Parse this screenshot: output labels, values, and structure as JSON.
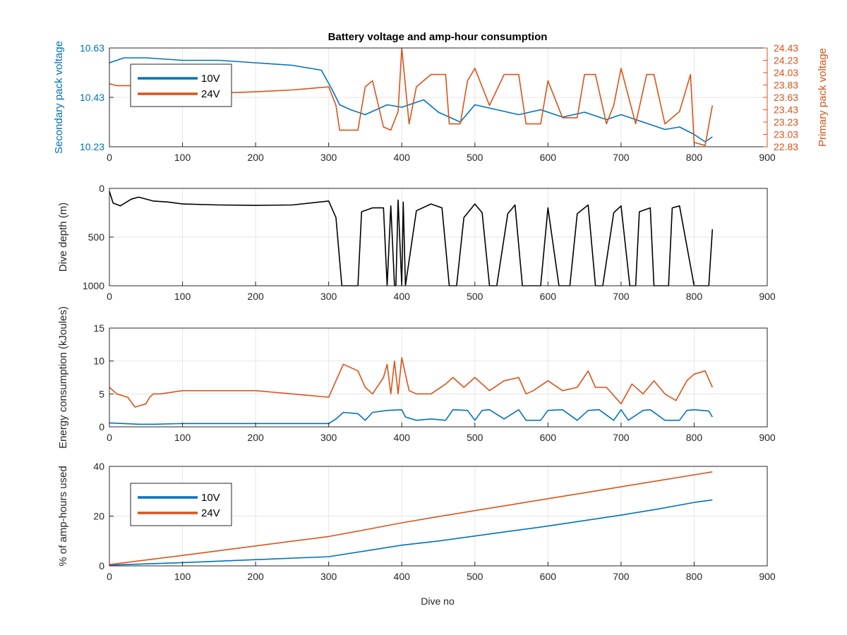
{
  "figure": {
    "title": "Battery voltage and amp-hour consumption",
    "xlabel": "Dive no"
  },
  "colors": {
    "blue": "#0072BD",
    "orange": "#D95319",
    "black": "#000000",
    "grid": "#e6e6e6",
    "axis": "#262626"
  },
  "chart_data": [
    {
      "type": "line",
      "name": "voltage",
      "title": "Battery voltage and amp-hour consumption",
      "xlabel": "",
      "ylabel": "Secondary pack voltage",
      "ylabel_right": "Primary pack voltage",
      "xlim": [
        0,
        900
      ],
      "ylim": [
        10.23,
        10.63
      ],
      "ylim_right": [
        22.83,
        24.43
      ],
      "xticks": [
        0,
        100,
        200,
        300,
        400,
        500,
        600,
        700,
        800,
        900
      ],
      "yticks": [
        10.23,
        10.43,
        10.63
      ],
      "yticks_right": [
        22.83,
        23.03,
        23.23,
        23.43,
        23.63,
        23.83,
        24.03,
        24.23,
        24.43
      ],
      "grid": true,
      "legend": {
        "location": "upper-left",
        "entries": [
          "10V",
          "24V"
        ]
      },
      "series": [
        {
          "name": "10V",
          "axis": "left",
          "color": "#0072BD",
          "x": [
            0,
            20,
            50,
            100,
            150,
            200,
            250,
            290,
            305,
            315,
            330,
            350,
            380,
            400,
            430,
            450,
            480,
            500,
            530,
            560,
            590,
            620,
            650,
            680,
            700,
            730,
            760,
            780,
            800,
            815,
            825
          ],
          "y": [
            10.57,
            10.59,
            10.59,
            10.58,
            10.58,
            10.57,
            10.56,
            10.54,
            10.46,
            10.4,
            10.38,
            10.36,
            10.4,
            10.39,
            10.42,
            10.37,
            10.33,
            10.4,
            10.38,
            10.36,
            10.38,
            10.35,
            10.37,
            10.34,
            10.36,
            10.33,
            10.3,
            10.31,
            10.28,
            10.25,
            10.27
          ]
        },
        {
          "name": "24V",
          "axis": "right",
          "color": "#D95319",
          "x": [
            0,
            10,
            30,
            60,
            100,
            150,
            200,
            250,
            300,
            310,
            315,
            340,
            350,
            360,
            375,
            385,
            395,
            400,
            410,
            420,
            440,
            460,
            465,
            480,
            490,
            500,
            520,
            540,
            560,
            570,
            590,
            600,
            620,
            640,
            650,
            665,
            680,
            690,
            700,
            720,
            735,
            745,
            760,
            780,
            795,
            800,
            815,
            825
          ],
          "y": [
            23.85,
            23.82,
            23.82,
            23.8,
            23.75,
            23.7,
            23.72,
            23.75,
            23.8,
            23.5,
            23.1,
            23.1,
            23.8,
            23.9,
            23.15,
            23.1,
            23.4,
            24.43,
            23.2,
            23.8,
            24.0,
            24.0,
            23.2,
            23.2,
            23.9,
            24.1,
            23.5,
            24.0,
            24.0,
            23.2,
            23.2,
            23.9,
            23.3,
            23.3,
            24.0,
            24.0,
            23.2,
            23.5,
            24.1,
            23.2,
            24.0,
            24.0,
            23.2,
            23.4,
            24.0,
            22.9,
            22.85,
            23.5
          ]
        }
      ]
    },
    {
      "type": "line",
      "name": "depth",
      "xlabel": "",
      "ylabel": "Dive depth (m)",
      "xlim": [
        0,
        900
      ],
      "ylim": [
        0,
        1000
      ],
      "y_reversed": true,
      "xticks": [
        0,
        100,
        200,
        300,
        400,
        500,
        600,
        700,
        800,
        900
      ],
      "yticks": [
        0,
        500,
        1000
      ],
      "grid": true,
      "series": [
        {
          "name": "",
          "color": "#000000",
          "x": [
            0,
            5,
            15,
            30,
            40,
            60,
            80,
            100,
            150,
            200,
            250,
            300,
            310,
            318,
            340,
            345,
            360,
            375,
            380,
            385,
            390,
            392,
            395,
            400,
            402,
            405,
            420,
            440,
            455,
            465,
            475,
            485,
            500,
            510,
            520,
            530,
            545,
            555,
            565,
            590,
            600,
            615,
            630,
            640,
            655,
            665,
            675,
            690,
            700,
            712,
            720,
            725,
            740,
            745,
            765,
            770,
            780,
            800,
            815,
            820,
            825
          ],
          "y": [
            30,
            150,
            180,
            110,
            90,
            130,
            140,
            160,
            170,
            175,
            170,
            130,
            300,
            1000,
            1000,
            240,
            200,
            200,
            1000,
            180,
            1000,
            1000,
            120,
            1000,
            140,
            1000,
            230,
            160,
            200,
            1000,
            1000,
            300,
            160,
            250,
            1000,
            1000,
            260,
            170,
            1000,
            1000,
            200,
            1000,
            1000,
            260,
            170,
            1000,
            1000,
            250,
            180,
            1000,
            1000,
            240,
            200,
            1000,
            1000,
            200,
            180,
            1000,
            1000,
            1000,
            420
          ]
        }
      ]
    },
    {
      "type": "line",
      "name": "energy",
      "xlabel": "",
      "ylabel": "Energy consumption (kJoules)",
      "xlim": [
        0,
        900
      ],
      "ylim": [
        0,
        15
      ],
      "xticks": [
        0,
        100,
        200,
        300,
        400,
        500,
        600,
        700,
        800,
        900
      ],
      "yticks": [
        0,
        5,
        10,
        15
      ],
      "grid": true,
      "series": [
        {
          "name": "24V",
          "color": "#D95319",
          "x": [
            0,
            10,
            25,
            35,
            50,
            55,
            60,
            70,
            100,
            150,
            200,
            250,
            300,
            310,
            320,
            340,
            350,
            360,
            375,
            380,
            385,
            390,
            395,
            400,
            410,
            420,
            440,
            460,
            470,
            485,
            500,
            520,
            540,
            560,
            570,
            580,
            600,
            620,
            640,
            655,
            665,
            680,
            700,
            715,
            730,
            745,
            760,
            775,
            790,
            800,
            815,
            825
          ],
          "y": [
            6,
            5,
            4.5,
            3,
            3.5,
            4.5,
            5,
            5,
            5.5,
            5.5,
            5.5,
            5,
            4.5,
            7,
            9.5,
            8.5,
            6,
            5,
            7.5,
            9.5,
            5,
            10,
            5,
            10.5,
            5.5,
            5,
            5,
            6.5,
            7.5,
            6,
            7.5,
            5.5,
            7,
            7.5,
            5,
            5.5,
            7,
            5.5,
            6,
            8.5,
            6,
            6,
            3.5,
            6.5,
            5,
            7,
            5,
            4,
            7,
            8,
            8.5,
            6
          ]
        },
        {
          "name": "10V",
          "color": "#0072BD",
          "x": [
            0,
            20,
            40,
            60,
            100,
            150,
            200,
            250,
            300,
            310,
            320,
            340,
            350,
            360,
            380,
            400,
            405,
            420,
            440,
            460,
            470,
            490,
            500,
            510,
            520,
            540,
            560,
            570,
            590,
            600,
            620,
            640,
            655,
            670,
            690,
            700,
            710,
            730,
            740,
            760,
            780,
            790,
            800,
            820,
            825
          ],
          "y": [
            0.6,
            0.5,
            0.4,
            0.4,
            0.5,
            0.5,
            0.5,
            0.5,
            0.5,
            1.2,
            2.2,
            2.0,
            1.0,
            2.2,
            2.5,
            2.6,
            1.5,
            1.0,
            1.2,
            1.0,
            2.6,
            2.5,
            1.0,
            2.5,
            2.6,
            1.2,
            2.6,
            1.0,
            1.0,
            2.5,
            2.6,
            1.0,
            2.5,
            2.6,
            1.0,
            2.6,
            1.0,
            2.5,
            2.6,
            1.0,
            1.0,
            2.5,
            2.6,
            2.4,
            1.5
          ]
        }
      ]
    },
    {
      "type": "line",
      "name": "amphours",
      "xlabel": "Dive no",
      "ylabel": "% of amp-hours used",
      "xlim": [
        0,
        900
      ],
      "ylim": [
        0,
        40
      ],
      "xticks": [
        0,
        100,
        200,
        300,
        400,
        500,
        600,
        700,
        800,
        900
      ],
      "yticks": [
        0,
        20,
        40
      ],
      "grid": true,
      "legend": {
        "location": "lower-left",
        "entries": [
          "10V",
          "24V"
        ]
      },
      "series": [
        {
          "name": "10V",
          "color": "#0072BD",
          "x": [
            0,
            100,
            200,
            300,
            350,
            400,
            450,
            500,
            550,
            600,
            650,
            700,
            750,
            800,
            825
          ],
          "y": [
            0.3,
            1.3,
            2.5,
            3.7,
            6.0,
            8.3,
            10.0,
            12.0,
            14.0,
            16.0,
            18.2,
            20.4,
            22.8,
            25.5,
            26.5
          ]
        },
        {
          "name": "24V",
          "color": "#D95319",
          "x": [
            0,
            100,
            200,
            300,
            350,
            400,
            450,
            500,
            550,
            600,
            650,
            700,
            750,
            800,
            825
          ],
          "y": [
            0.5,
            4.2,
            8.0,
            11.8,
            14.5,
            17.3,
            19.8,
            22.2,
            24.6,
            27.0,
            29.4,
            31.8,
            34.2,
            36.6,
            37.8
          ]
        }
      ]
    }
  ]
}
